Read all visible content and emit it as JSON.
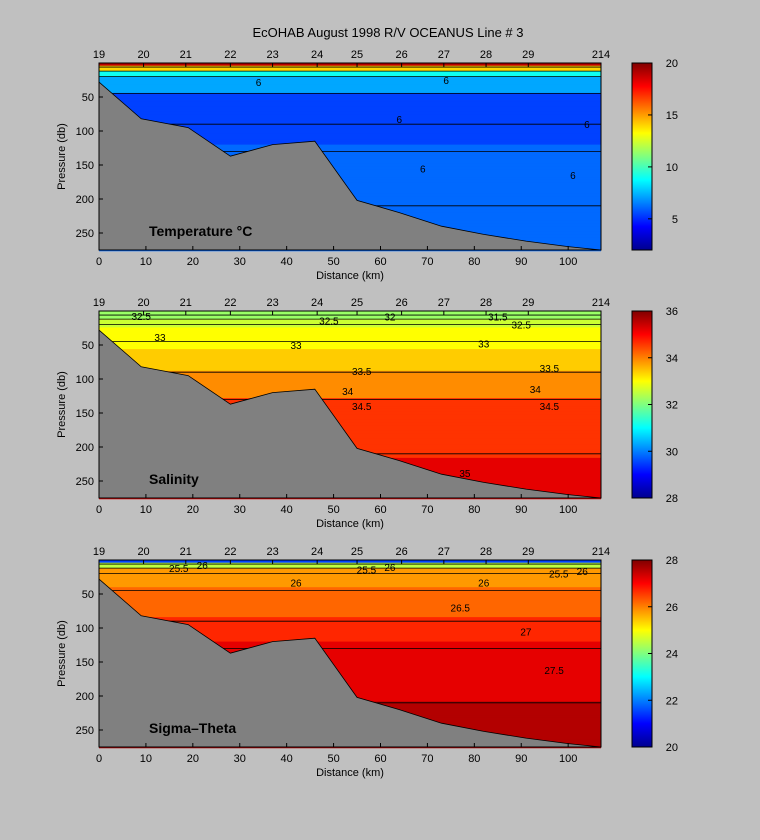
{
  "title": "EcOHAB   August 1998   R/V OCEANUS   Line # 3",
  "colors": {
    "seabed": "#808080",
    "background": "#c0c0c0"
  },
  "chart_data": [
    {
      "type": "heatmap",
      "label": "Temperature °C",
      "ylabel": "Pressure (db)",
      "xlabel": "Distance (km)",
      "xlim": [
        0,
        107
      ],
      "ylim": [
        0,
        275
      ],
      "yticks": [
        50,
        100,
        150,
        200,
        250
      ],
      "xticks": [
        0,
        10,
        20,
        30,
        40,
        50,
        60,
        70,
        80,
        90,
        100
      ],
      "stations": [
        "19",
        "20",
        "21",
        "22",
        "23",
        "24",
        "25",
        "26",
        "27",
        "28",
        "29",
        "214"
      ],
      "station_x": [
        0,
        9.5,
        18.5,
        28,
        37,
        46.5,
        55,
        64.5,
        73.5,
        82.5,
        91.5,
        107
      ],
      "colorbar": {
        "min": 2,
        "max": 20,
        "ticks": [
          5,
          10,
          15,
          20
        ]
      },
      "contour_labels": [
        {
          "text": "6",
          "x": 34,
          "y": 28
        },
        {
          "text": "6",
          "x": 74,
          "y": 25
        },
        {
          "text": "6",
          "x": 64,
          "y": 82
        },
        {
          "text": "6",
          "x": 104,
          "y": 90
        },
        {
          "text": "6",
          "x": 69,
          "y": 155
        },
        {
          "text": "6",
          "x": 101,
          "y": 165
        }
      ]
    },
    {
      "type": "heatmap",
      "label": "Salinity",
      "ylabel": "Pressure (db)",
      "xlabel": "Distance (km)",
      "xlim": [
        0,
        107
      ],
      "ylim": [
        0,
        275
      ],
      "yticks": [
        50,
        100,
        150,
        200,
        250
      ],
      "xticks": [
        0,
        10,
        20,
        30,
        40,
        50,
        60,
        70,
        80,
        90,
        100
      ],
      "stations": [
        "19",
        "20",
        "21",
        "22",
        "23",
        "24",
        "25",
        "26",
        "27",
        "28",
        "29",
        "214"
      ],
      "station_x": [
        0,
        9.5,
        18.5,
        28,
        37,
        46.5,
        55,
        64.5,
        73.5,
        82.5,
        91.5,
        107
      ],
      "colorbar": {
        "min": 28,
        "max": 36,
        "ticks": [
          28,
          30,
          32,
          34,
          36
        ]
      },
      "contour_labels": [
        {
          "text": "32.5",
          "x": 9,
          "y": 7
        },
        {
          "text": "32.5",
          "x": 49,
          "y": 14
        },
        {
          "text": "32",
          "x": 62,
          "y": 8
        },
        {
          "text": "31.5",
          "x": 85,
          "y": 8
        },
        {
          "text": "32.5",
          "x": 90,
          "y": 20
        },
        {
          "text": "33",
          "x": 13,
          "y": 38
        },
        {
          "text": "33",
          "x": 42,
          "y": 50
        },
        {
          "text": "33",
          "x": 82,
          "y": 48
        },
        {
          "text": "33.5",
          "x": 56,
          "y": 88
        },
        {
          "text": "33.5",
          "x": 96,
          "y": 84
        },
        {
          "text": "34",
          "x": 53,
          "y": 118
        },
        {
          "text": "34",
          "x": 93,
          "y": 115
        },
        {
          "text": "34.5",
          "x": 56,
          "y": 140
        },
        {
          "text": "34.5",
          "x": 96,
          "y": 140
        },
        {
          "text": "35",
          "x": 78,
          "y": 238
        }
      ]
    },
    {
      "type": "heatmap",
      "label": "Sigma–Theta",
      "ylabel": "Pressure (db)",
      "xlabel": "Distance (km)",
      "xlim": [
        0,
        107
      ],
      "ylim": [
        0,
        275
      ],
      "yticks": [
        50,
        100,
        150,
        200,
        250
      ],
      "xticks": [
        0,
        10,
        20,
        30,
        40,
        50,
        60,
        70,
        80,
        90,
        100
      ],
      "stations": [
        "19",
        "20",
        "21",
        "22",
        "23",
        "24",
        "25",
        "26",
        "27",
        "28",
        "29",
        "214"
      ],
      "station_x": [
        0,
        9.5,
        18.5,
        28,
        37,
        46.5,
        55,
        64.5,
        73.5,
        82.5,
        91.5,
        107
      ],
      "colorbar": {
        "min": 20,
        "max": 28,
        "ticks": [
          20,
          22,
          24,
          26,
          28
        ]
      },
      "contour_labels": [
        {
          "text": "25.5",
          "x": 17,
          "y": 12
        },
        {
          "text": "26",
          "x": 22,
          "y": 7
        },
        {
          "text": "25.5",
          "x": 57,
          "y": 14
        },
        {
          "text": "26",
          "x": 62,
          "y": 10
        },
        {
          "text": "25.5",
          "x": 98,
          "y": 20
        },
        {
          "text": "26",
          "x": 103,
          "y": 16
        },
        {
          "text": "26",
          "x": 42,
          "y": 33
        },
        {
          "text": "26",
          "x": 82,
          "y": 33
        },
        {
          "text": "26.5",
          "x": 77,
          "y": 70
        },
        {
          "text": "27",
          "x": 91,
          "y": 105
        },
        {
          "text": "27.5",
          "x": 97,
          "y": 162
        }
      ]
    }
  ]
}
